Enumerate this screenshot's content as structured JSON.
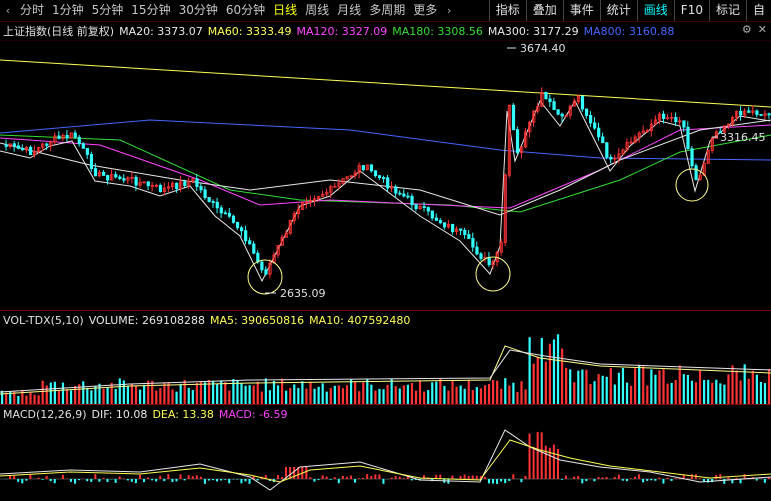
{
  "toolbar": {
    "periods": [
      "分时",
      "1分钟",
      "5分钟",
      "15分钟",
      "30分钟",
      "60分钟",
      "日线",
      "周线",
      "月线",
      "多周期",
      "更多"
    ],
    "selected_index": 6,
    "right_tabs": [
      "指标",
      "叠加",
      "事件",
      "统计",
      "画线",
      "F10",
      "标记",
      "自"
    ],
    "right_active_index": 4
  },
  "main_legend": {
    "title": "上证指数(日线 前复权)",
    "ma": [
      {
        "label": "MA20: 3373.07",
        "color": "#e8e8e8"
      },
      {
        "label": "MA60: 3333.49",
        "color": "#ffff55"
      },
      {
        "label": "MA120: 3327.09",
        "color": "#ff44ff"
      },
      {
        "label": "MA180: 3308.56",
        "color": "#33dd33"
      },
      {
        "label": "MA300: 3177.29",
        "color": "#e8e8e8"
      },
      {
        "label": "MA800: 3160.88",
        "color": "#4466ff"
      }
    ]
  },
  "annotations": {
    "high": "3674.40",
    "low": "2635.09",
    "right": "3316.45"
  },
  "volume_legend": {
    "name": "VOL-TDX(5,10)",
    "items": [
      {
        "label": "VOLUME: 269108288",
        "color": "#e8e8e8"
      },
      {
        "label": "MA5: 390650816",
        "color": "#ffff55"
      },
      {
        "label": "MA10: 407592480",
        "color": "#ffff55"
      }
    ]
  },
  "macd_legend": {
    "name": "MACD(12,26,9)",
    "items": [
      {
        "label": "DIF: 10.08",
        "color": "#e8e8e8"
      },
      {
        "label": "DEA: 13.38",
        "color": "#ffff55"
      },
      {
        "label": "MACD: -6.59",
        "color": "#ff44ff"
      }
    ]
  },
  "colors": {
    "up": "#ff3333",
    "down": "#33ffff",
    "bg": "#000000",
    "grid": "#7a0000"
  },
  "icons": {
    "back": "chevron-left-icon",
    "more": "chevron-right-icon",
    "close": "close-icon",
    "settings": "gear-icon"
  }
}
